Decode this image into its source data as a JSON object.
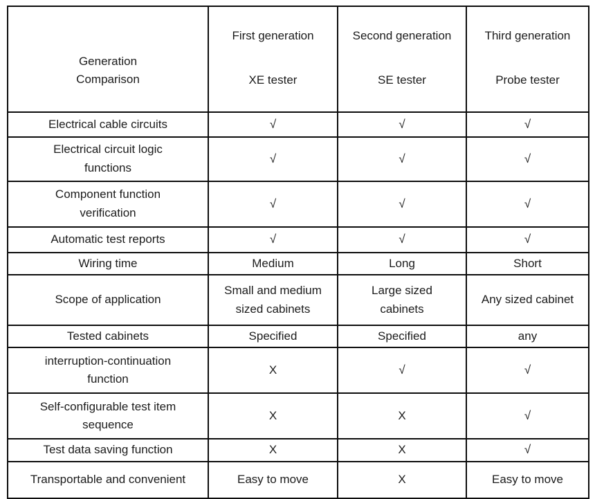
{
  "table": {
    "corner": {
      "line1": "Generation",
      "line2": "Comparison"
    },
    "columns": [
      {
        "line1": "First generation",
        "line2": "XE tester"
      },
      {
        "line1": "Second generation",
        "line2": "SE tester"
      },
      {
        "line1": "Third generation",
        "line2": "Probe tester"
      }
    ],
    "rows": [
      {
        "label": "Electrical cable circuits",
        "values": [
          "√",
          "√",
          "√"
        ]
      },
      {
        "label": "Electrical circuit logic\nfunctions",
        "values": [
          "√",
          "√",
          "√"
        ]
      },
      {
        "label": "Component function\nverification",
        "values": [
          "√",
          "√",
          "√"
        ]
      },
      {
        "label": "Automatic test reports",
        "values": [
          "√",
          "√",
          "√"
        ]
      },
      {
        "label": "Wiring time",
        "values": [
          "Medium",
          "Long",
          "Short"
        ]
      },
      {
        "label": "Scope of application",
        "values": [
          "Small and medium\nsized cabinets",
          "Large sized\ncabinets",
          "Any sized cabinet"
        ]
      },
      {
        "label": "Tested cabinets",
        "values": [
          "Specified",
          "Specified",
          "any"
        ]
      },
      {
        "label": "interruption-continuation\nfunction",
        "values": [
          "X",
          "√",
          "√"
        ]
      },
      {
        "label": "Self-configurable test item\nsequence",
        "values": [
          "X",
          "X",
          "√"
        ]
      },
      {
        "label": "Test data saving function",
        "values": [
          "X",
          "X",
          "√"
        ]
      },
      {
        "label": "Transportable and convenient",
        "values": [
          "Easy to move",
          "X",
          "Easy to move"
        ]
      }
    ]
  }
}
